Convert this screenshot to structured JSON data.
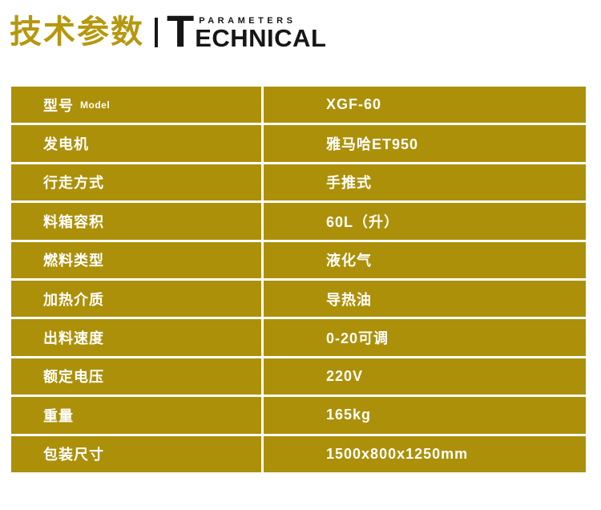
{
  "header": {
    "title": "技术参数",
    "logo": {
      "initial": "T",
      "word_top": "PARAMETERS",
      "word_bottom": "ECHNICAL"
    }
  },
  "table": {
    "rows": [
      {
        "label": "型号",
        "label_en": "Model",
        "value": "XGF-60"
      },
      {
        "label": "发电机",
        "value": "雅马哈ET950"
      },
      {
        "label": "行走方式",
        "value": "手推式"
      },
      {
        "label": "料箱容积",
        "value": "60L（升）"
      },
      {
        "label": "燃料类型",
        "value": "液化气"
      },
      {
        "label": "加热介质",
        "value": "导热油"
      },
      {
        "label": "出料速度",
        "value": "0-20可调"
      },
      {
        "label": "额定电压",
        "value": "220V"
      },
      {
        "label": "重量",
        "value": "165kg"
      },
      {
        "label": "包装尺寸",
        "value": "1500x800x1250mm"
      }
    ]
  },
  "colors": {
    "gold": "#AC9009",
    "title_gold": "#B6980E",
    "row_text": "#FFFFFF",
    "logo_black": "#161616"
  }
}
